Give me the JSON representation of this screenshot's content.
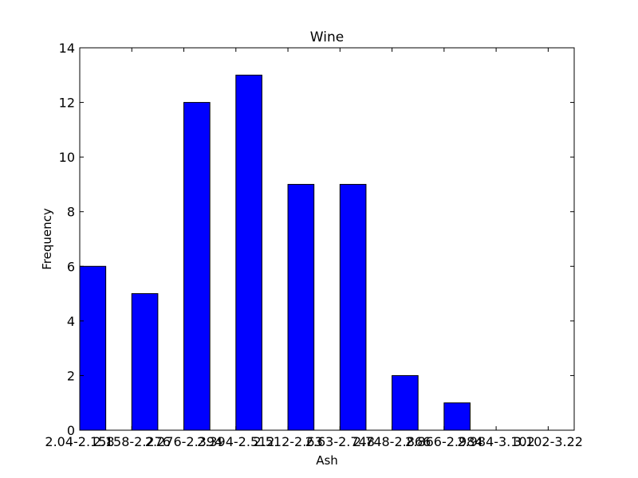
{
  "chart_data": {
    "type": "bar",
    "title": "Wine",
    "xlabel": "Ash",
    "ylabel": "Frequency",
    "categories": [
      "2.04-2.158",
      "2.158-2.276",
      "2.276-2.394",
      "2.394-2.512",
      "2.512-2.63",
      "2.63-2.748",
      "2.748-2.866",
      "2.866-2.984",
      "2.984-3.102",
      "3.102-3.22"
    ],
    "values": [
      6,
      5,
      12,
      13,
      9,
      9,
      2,
      1,
      0,
      0
    ],
    "ylim": [
      0,
      14
    ],
    "yticks": [
      0,
      2,
      4,
      6,
      8,
      10,
      12,
      14
    ],
    "bar_color": "#0000ff",
    "grid": false,
    "legend": "none"
  }
}
